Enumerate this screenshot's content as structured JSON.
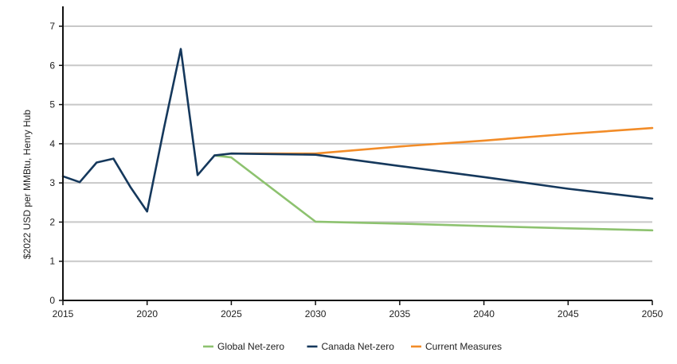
{
  "chart_data": {
    "type": "line",
    "title": "",
    "xlabel": "",
    "ylabel": "$2022 USD per MMBtu, Henry Hub",
    "xlim": [
      2015,
      2050
    ],
    "ylim": [
      0,
      7
    ],
    "x_ticks": [
      2015,
      2020,
      2025,
      2030,
      2035,
      2040,
      2045,
      2050
    ],
    "y_ticks": [
      0,
      1,
      2,
      3,
      4,
      5,
      6,
      7
    ],
    "grid": "horizontal",
    "legend_position": "bottom",
    "series": [
      {
        "name": "Current Measures",
        "color": "#F28C28",
        "points": [
          [
            2025,
            3.75
          ],
          [
            2030,
            3.75
          ],
          [
            2035,
            3.93
          ],
          [
            2040,
            4.08
          ],
          [
            2045,
            4.25
          ],
          [
            2050,
            4.4
          ]
        ]
      },
      {
        "name": "Global Net-zero",
        "color": "#8DC26F",
        "points": [
          [
            2024,
            3.7
          ],
          [
            2025,
            3.65
          ],
          [
            2030,
            2.01
          ],
          [
            2035,
            1.96
          ],
          [
            2040,
            1.9
          ],
          [
            2045,
            1.84
          ],
          [
            2050,
            1.79
          ]
        ]
      },
      {
        "name": "Canada Net-zero",
        "color": "#15385C",
        "points": [
          [
            2015,
            3.17
          ],
          [
            2016,
            3.02
          ],
          [
            2017,
            3.52
          ],
          [
            2018,
            3.62
          ],
          [
            2019,
            2.9
          ],
          [
            2020,
            2.27
          ],
          [
            2021,
            4.4
          ],
          [
            2022,
            6.42
          ],
          [
            2023,
            3.2
          ],
          [
            2024,
            3.7
          ],
          [
            2025,
            3.75
          ],
          [
            2030,
            3.72
          ],
          [
            2035,
            3.43
          ],
          [
            2040,
            3.15
          ],
          [
            2045,
            2.85
          ],
          [
            2050,
            2.6
          ]
        ]
      }
    ],
    "legend_order": [
      "Global Net-zero",
      "Canada Net-zero",
      "Current Measures"
    ]
  }
}
